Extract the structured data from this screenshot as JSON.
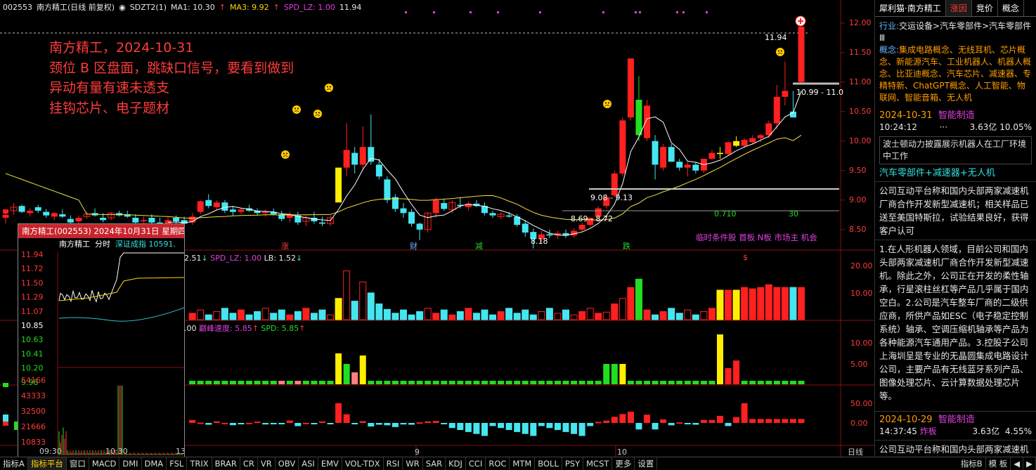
{
  "header": {
    "code": "002553",
    "name_period": "南方精工(日线 前复权)",
    "sdzt": "SDZT2(1)",
    "ma1": "MA1: 10.30",
    "ma3": "MA3: 9.92",
    "spd": "SPD_LZ: 1.00",
    "last": "11.94"
  },
  "annotation": [
    "南方精工，2024-10-31",
    "颈位 B 区盘面，跳缺口信号，要看到做到",
    "异动有量有速未透支",
    "挂钩芯片、电子题材"
  ],
  "price_axis": [
    "12.00",
    "11.50",
    "11.00",
    "10.50",
    "10.00",
    "9.50",
    "9.00",
    "8.50"
  ],
  "chart_labels": {
    "high_label": "11.94",
    "gap_label": "10.99 - 11.0",
    "range1": "9.08 - 9.13",
    "range2": "8.69 - 8.72",
    "low_label": "8.18",
    "value_0710": "0.710",
    "value_30": "30",
    "bottom_tags": [
      "涨",
      "财",
      "减",
      "跌"
    ],
    "magenta_note": "临时条件股 首板 N板 市场主 机会",
    "dollar": "$"
  },
  "sub1": {
    "header": "2.51",
    "spd": "SPD_LZ: 1.00",
    "lb": "LB: 1.52",
    "axis": [
      "20.00",
      "10.00"
    ]
  },
  "sub2": {
    "header": ".00",
    "speed": "巅峰速度: 5.85",
    "spd": "SPD: 5.85",
    "axis": [
      "10.00",
      "5.00"
    ]
  },
  "sub3": {
    "axis": [
      "50.00",
      "0.00"
    ]
  },
  "date_axis": [
    "9",
    "10"
  ],
  "inset": {
    "title": "南方精工(002553) 2024年10月31日 星期四",
    "name": "南方精工",
    "mode": "分时",
    "index": "深证成指 10591.",
    "price_ticks": [
      "11.94",
      "11.72",
      "11.50",
      "11.29",
      "11.07",
      "10.85",
      "10.63",
      "10.41",
      "10.20",
      "9.98"
    ],
    "vol_ticks": [
      "54166",
      "43333",
      "32500",
      "21666",
      "10833"
    ],
    "times": [
      "09:30",
      "10:30",
      "13"
    ]
  },
  "right_panel": {
    "tabs": [
      "犀利猫·南方精工",
      "涨因",
      "竞价",
      "概念"
    ],
    "industry_label": "行业:",
    "industry": "交运设备>汽车零部件>汽车零部件Ⅲ",
    "concept_label": "概念:",
    "concepts": "集成电路概念、无线耳机、芯片概念、新能源汽车、工业机器人、机器人概念、比亚迪概念、汽车芯片、减速器、专精特新、ChatGPT概念、人工智能、物联网、智能音箱、无人机",
    "e1_date": "2024-10-31",
    "e1_tag": "智能制造",
    "e1_time": "10:24:12",
    "e1_dots": "···",
    "e1_amount": "3.63亿",
    "e1_pct": "10.05%",
    "news": "波士顿动力披露展示机器人在工厂环境中工作",
    "theme": "汽车零部件+减速器+无人机",
    "body1": "公司互动平台称和国内头部两家减速机厂商合作开发新型减速机；相关样品已送至美国特斯拉，试验结果良好，获得客户认可",
    "body2": "1.在人形机器人领域，目前公司和国内头部两家减速机厂商合作开发新型减速机。除此之外，公司正在开发的柔性轴承，行星滚柱丝杠等产品几乎属于国内空白。2.公司是汽车整车厂商的二级供应商，所供产品如ESC（电子稳定控制系统）轴承、空调压缩机轴承等产品为各种能源汽车通用产品。3.控股子公司上海圳呈是专业的无晶圆集成电路设计公司，主要产品有无线蓝牙系列产品、图像处理芯片、云计算数据处理芯片等。",
    "e2_date": "2024-10-29",
    "e2_tag": "智能制造",
    "e2_time": "14:37:45",
    "e2_kind": "炸板",
    "e2_amount": "3.63亿",
    "e2_pct": "4.55%",
    "body3": "公司互动平台称和国内头部两家减速机厂商合作开发新型减速机；"
  },
  "bottom_tabs": [
    "指标A",
    "指标平台",
    "窗口",
    "MACD",
    "DMI",
    "DMA",
    "FSL",
    "TRIX",
    "BRAR",
    "CR",
    "VR",
    "OBV",
    "ASI",
    "EMV",
    "VOL-TDX",
    "RSI",
    "WR",
    "SAR",
    "KDJ",
    "CCI",
    "ROC",
    "MTM",
    "BOLL",
    "PSY",
    "MCST",
    "更多",
    "设置"
  ],
  "bottom_right": [
    "指标B",
    "模 板",
    "日线"
  ],
  "colors": {
    "up": "#ff2020",
    "down": "#45e6f0",
    "limit": "#ffee00",
    "green": "#22dd22",
    "ma": "#ffffff",
    "ma2": "#f0e040"
  }
}
